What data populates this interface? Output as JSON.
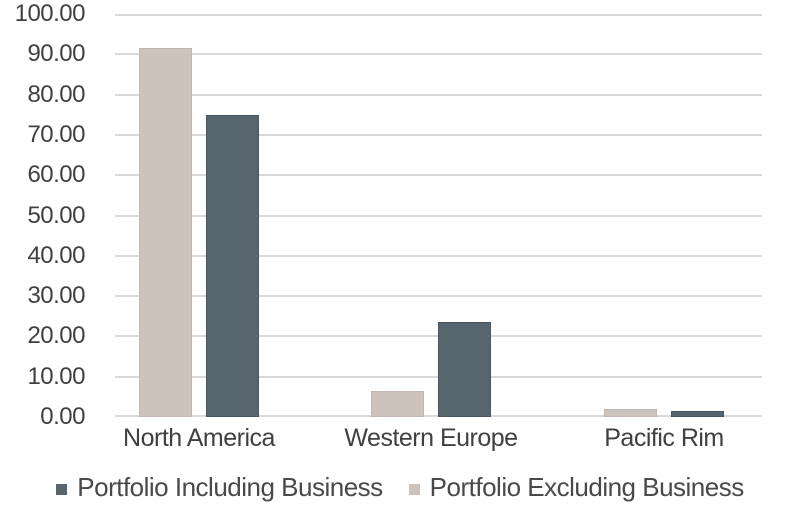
{
  "chart_data": {
    "type": "bar",
    "title": "",
    "xlabel": "",
    "ylabel": "",
    "categories": [
      "North America",
      "Western Europe",
      "Pacific Rim"
    ],
    "series": [
      {
        "name": "Portfolio Including Business",
        "color": "#57656e",
        "border_color": "#4b575f",
        "values": [
          75,
          23.5,
          1.5
        ]
      },
      {
        "name": "Portfolio Excluding Business",
        "color": "#ccc3bd",
        "border_color": "#c0b6af",
        "values": [
          91.5,
          6.5,
          2
        ]
      }
    ],
    "bar_order_note": "within each category the Excluding (light) bar is drawn left of the Including (dark) bar",
    "ylim": [
      0,
      100
    ],
    "ytick_step": 10,
    "ytick_labels": [
      "0.00",
      "10.00",
      "20.00",
      "30.00",
      "40.00",
      "50.00",
      "60.00",
      "70.00",
      "80.00",
      "90.00",
      "100.00"
    ],
    "grid": "horizontal",
    "gridline_color": "#d9d9d9",
    "background_color": "#ffffff",
    "text_color": "#404042",
    "legend_position": "bottom"
  }
}
